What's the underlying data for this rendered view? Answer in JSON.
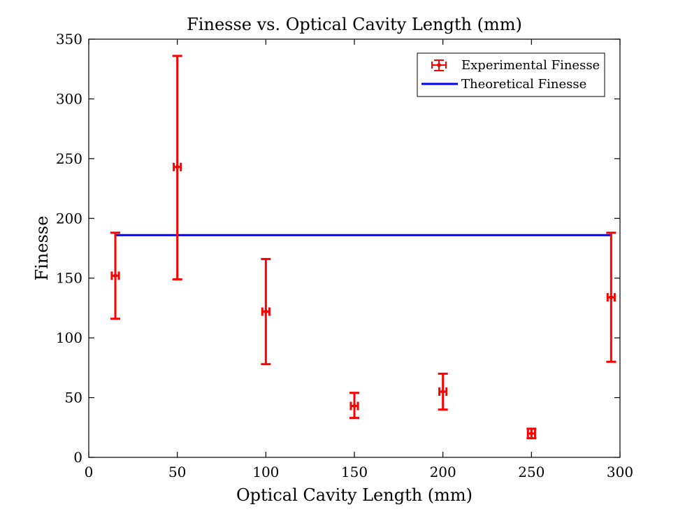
{
  "chart_data": {
    "type": "scatter",
    "title": "Finesse vs. Optical Cavity Length (mm)",
    "xlabel": "Optical Cavity Length (mm)",
    "ylabel": "Finesse",
    "xlim": [
      0,
      300
    ],
    "ylim": [
      0,
      350
    ],
    "xticks": [
      "0",
      "50",
      "100",
      "150",
      "200",
      "250",
      "300"
    ],
    "yticks": [
      "0",
      "50",
      "100",
      "150",
      "200",
      "250",
      "300",
      "350"
    ],
    "grid": false,
    "legend_position": "top-right",
    "series": [
      {
        "name": "Experimental Finesse",
        "kind": "errorbar",
        "color": "#ff0000",
        "points": [
          {
            "x": 15,
            "y": 152,
            "yerr_low": 116,
            "yerr_high": 188,
            "xerr": 2
          },
          {
            "x": 50,
            "y": 243,
            "yerr_low": 149,
            "yerr_high": 336,
            "xerr": 2
          },
          {
            "x": 100,
            "y": 122,
            "yerr_low": 78,
            "yerr_high": 166,
            "xerr": 2
          },
          {
            "x": 150,
            "y": 43,
            "yerr_low": 33,
            "yerr_high": 54,
            "xerr": 2
          },
          {
            "x": 200,
            "y": 55,
            "yerr_low": 40,
            "yerr_high": 70,
            "xerr": 2
          },
          {
            "x": 250,
            "y": 20,
            "yerr_low": 16,
            "yerr_high": 24,
            "xerr": 2
          },
          {
            "x": 295,
            "y": 134,
            "yerr_low": 80,
            "yerr_high": 188,
            "xerr": 2
          }
        ]
      },
      {
        "name": "Theoretical Finesse",
        "kind": "line",
        "color": "#0000ff",
        "x": [
          15,
          295
        ],
        "y": [
          186,
          186
        ]
      }
    ]
  }
}
